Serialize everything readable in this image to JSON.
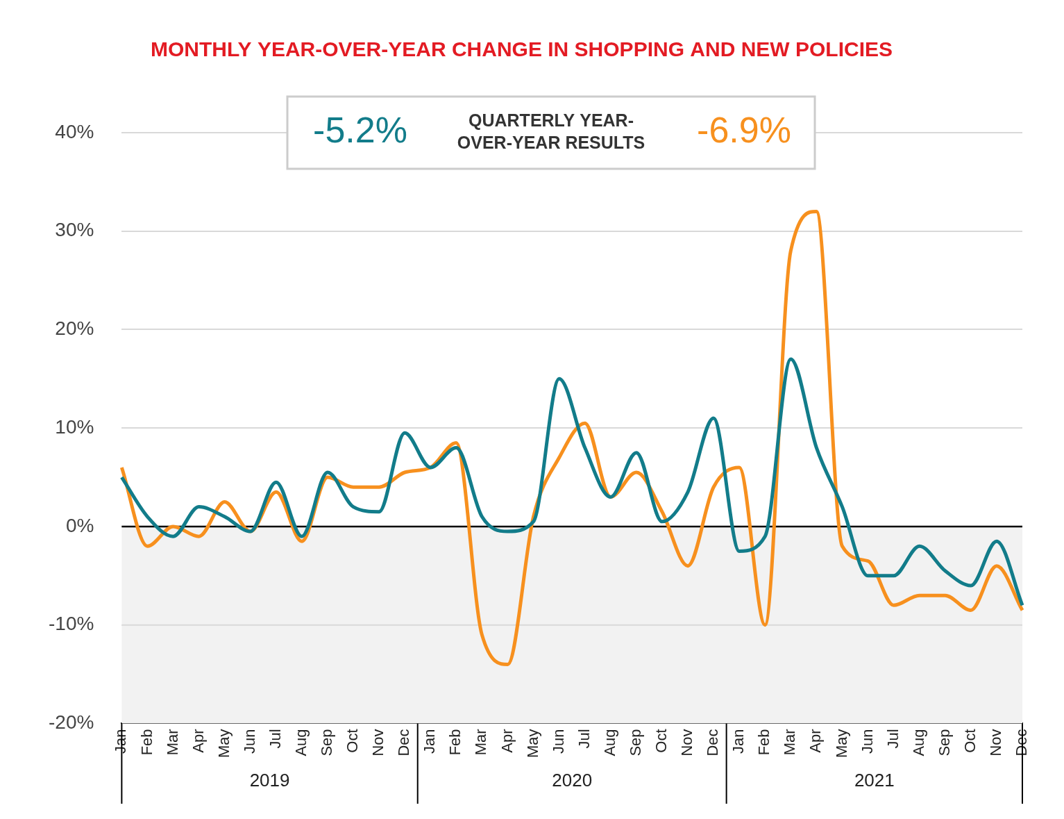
{
  "chart_data": {
    "type": "line",
    "title": "MONTHLY YEAR-OVER-YEAR CHANGE IN SHOPPING AND NEW POLICIES",
    "categories": [
      "Jan",
      "Feb",
      "Mar",
      "Apr",
      "May",
      "Jun",
      "Jul",
      "Aug",
      "Sep",
      "Oct",
      "Nov",
      "Dec",
      "Jan",
      "Feb",
      "Mar",
      "Apr",
      "May",
      "Jun",
      "Jul",
      "Aug",
      "Sep",
      "Oct",
      "Nov",
      "Dec",
      "Jan",
      "Feb",
      "Mar",
      "Apr",
      "May",
      "Jun",
      "Jul",
      "Aug",
      "Sep",
      "Oct",
      "Nov",
      "Dec"
    ],
    "year_groups": [
      "2019",
      "2020",
      "2021"
    ],
    "series": [
      {
        "name": "Shopping",
        "color": "#127c8a",
        "values": [
          5,
          1,
          -1,
          2,
          1,
          -0.5,
          4.5,
          -1,
          5.5,
          2,
          1.5,
          9.5,
          6,
          8,
          1,
          -0.5,
          0.5,
          15,
          8,
          3,
          7.5,
          0.5,
          3.5,
          11,
          -2.5,
          -1,
          17,
          8,
          2,
          -5,
          -5,
          -2,
          -4.5,
          -6,
          -1.5,
          -8
        ]
      },
      {
        "name": "New Policies",
        "color": "#f7901e",
        "values": [
          6,
          -2,
          0,
          -1,
          2.5,
          -0.5,
          3.5,
          -1.5,
          5,
          4,
          4,
          5.5,
          6,
          8.5,
          -11,
          -14,
          1,
          7,
          10.5,
          3,
          5.5,
          1.5,
          -4,
          4,
          6,
          -10,
          28,
          32,
          -2,
          -3.5,
          -8,
          -7,
          -7,
          -8.5,
          -4,
          -8.5
        ]
      }
    ],
    "ylim": [
      -20,
      40
    ],
    "yticks": [
      {
        "value": -20,
        "label": "-20%"
      },
      {
        "value": -10,
        "label": "-10%"
      },
      {
        "value": 0,
        "label": "0%"
      },
      {
        "value": 10,
        "label": "10%"
      },
      {
        "value": 20,
        "label": "20%"
      },
      {
        "value": 30,
        "label": "30%"
      },
      {
        "value": 40,
        "label": "40%"
      }
    ],
    "grid": true,
    "legend": "top",
    "annotation": {
      "text": [
        "QUARTERLY YEAR-",
        "OVER-YEAR RESULTS"
      ],
      "results": [
        {
          "series": "Shopping",
          "label": "-5.2%"
        },
        {
          "series": "New Policies",
          "label": "-6.9%"
        }
      ]
    }
  }
}
